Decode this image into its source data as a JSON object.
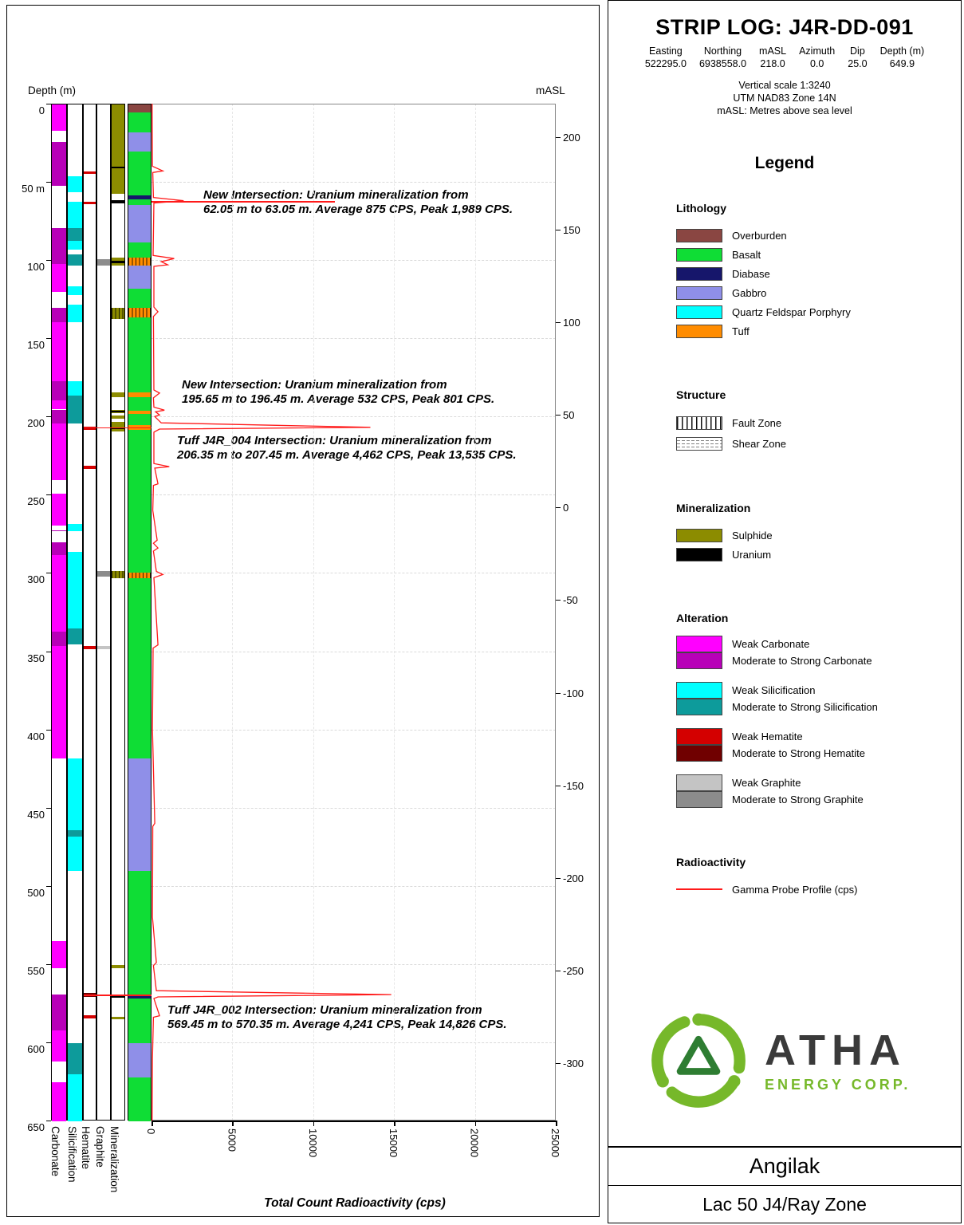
{
  "header": {
    "title": "STRIP LOG: J4R-DD-091",
    "info_labels": [
      "Easting",
      "Northing",
      "mASL",
      "Azimuth",
      "Dip",
      "Depth (m)"
    ],
    "info_values": [
      "522295.0",
      "6938558.0",
      "218.0",
      "0.0",
      "25.0",
      "649.9"
    ],
    "scale_lines": [
      "Vertical scale 1:3240",
      "UTM NAD83 Zone 14N",
      "mASL: Metres above sea level"
    ]
  },
  "left_panel": {
    "depth_label": "Depth (m)",
    "masl_label": "mASL",
    "x_title": "Total Count Radioactivity (cps)",
    "column_labels": [
      "Carbonate",
      "Silicification",
      "Hematite",
      "Graphite",
      "Mineralization"
    ]
  },
  "annotations": [
    {
      "line1": "New Intersection: Uranium mineralization from",
      "line2": "62.05 m to 63.05 m. Average 875 CPS, Peak 1,989 CPS."
    },
    {
      "line1": "New Intersection: Uranium mineralization from",
      "line2": "195.65 m to 196.45 m. Average 532 CPS, Peak 801 CPS."
    },
    {
      "line1": "Tuff J4R_004 Intersection: Uranium mineralization from",
      "line2": "206.35 m to 207.45 m. Average 4,462 CPS, Peak 13,535 CPS."
    },
    {
      "line1": "Tuff J4R_002 Intersection: Uranium mineralization from",
      "line2": "569.45 m to 570.35 m. Average 4,241 CPS, Peak 14,826 CPS."
    }
  ],
  "legend": {
    "heading": "Legend",
    "sections": [
      {
        "title": "Lithology",
        "type": "swatch",
        "items": [
          {
            "label": "Overburden",
            "color": "#8A4642"
          },
          {
            "label": "Basalt",
            "color": "#0FDD35"
          },
          {
            "label": "Diabase",
            "color": "#16166B"
          },
          {
            "label": "Gabbro",
            "color": "#8F8FE8"
          },
          {
            "label": "Quartz Feldspar Porphyry",
            "color": "#00FFFF"
          },
          {
            "label": "Tuff",
            "color": "#FF8C00"
          }
        ]
      },
      {
        "title": "Structure",
        "type": "pattern",
        "items": [
          {
            "label": "Fault Zone",
            "pattern": "fault"
          },
          {
            "label": "Shear Zone",
            "pattern": "shear"
          }
        ]
      },
      {
        "title": "Mineralization",
        "type": "swatch",
        "items": [
          {
            "label": "Sulphide",
            "color": "#8C8C00"
          },
          {
            "label": "Uranium",
            "color": "#000000"
          }
        ]
      },
      {
        "title": "Alteration",
        "type": "stacked",
        "groups": [
          [
            {
              "label": "Weak Carbonate",
              "color": "#FF00FF"
            },
            {
              "label": "Moderate to Strong Carbonate",
              "color": "#B800B8"
            }
          ],
          [
            {
              "label": "Weak Silicification",
              "color": "#00FFFF"
            },
            {
              "label": "Moderate to Strong Silicification",
              "color": "#0D9B9B"
            }
          ],
          [
            {
              "label": "Weak Hematite",
              "color": "#D40000"
            },
            {
              "label": "Moderate to Strong Hematite",
              "color": "#700000"
            }
          ],
          [
            {
              "label": "Weak Graphite",
              "color": "#C4C4C4"
            },
            {
              "label": "Moderate to Strong Graphite",
              "color": "#8C8C8C"
            }
          ]
        ]
      },
      {
        "title": "Radioactivity",
        "type": "line",
        "items": [
          {
            "label": "Gamma Probe Profile (cps)",
            "color": "#FF1A1A"
          }
        ]
      }
    ]
  },
  "logo": {
    "name": "ATHA",
    "sub": "ENERGY CORP."
  },
  "footer": {
    "project": "Angilak",
    "zone": "Lac 50 J4/Ray Zone"
  },
  "chart_data": {
    "type": "strip-log",
    "depth_axis": {
      "label": "Depth (m)",
      "min": 0,
      "max": 650,
      "ticks": [
        0,
        50,
        100,
        150,
        200,
        250,
        300,
        350,
        400,
        450,
        500,
        550,
        600,
        650
      ],
      "tick_labels": [
        "0",
        "50 m",
        "100",
        "150",
        "200",
        "250",
        "300",
        "350",
        "400",
        "450",
        "500",
        "550",
        "600",
        "650"
      ]
    },
    "masl_axis": {
      "label": "mASL",
      "surface_masl": 218.0,
      "depth_per_masl": 1.184,
      "ticks": [
        200,
        150,
        100,
        50,
        0,
        -50,
        -100,
        -150,
        -200,
        -250,
        -300
      ]
    },
    "gamma_axis": {
      "label": "Total Count Radioactivity (cps)",
      "min": 0,
      "max": 25000,
      "ticks": [
        0,
        5000,
        10000,
        15000,
        20000,
        25000
      ]
    },
    "colors": {
      "overburden": "#8A4642",
      "basalt": "#0FDD35",
      "diabase": "#16166B",
      "gabbro": "#8F8FE8",
      "qfp": "#00FFFF",
      "tuff": "#FF8C00",
      "sulphide": "#8C8C00",
      "uranium": "#000000",
      "carbonate_weak": "#FF00FF",
      "carbonate_strong": "#B800B8",
      "silicification_weak": "#00FFFF",
      "silicification_strong": "#0D9B9B",
      "hematite_weak": "#D40000",
      "hematite_strong": "#700000",
      "graphite_weak": "#C4C4C4",
      "graphite_strong": "#8C8C8C",
      "gamma": "#FF1A1A"
    },
    "columns": {
      "carbonate": [
        {
          "from": 0,
          "to": 17,
          "k": "w"
        },
        {
          "from": 24,
          "to": 52,
          "k": "s"
        },
        {
          "from": 79,
          "to": 102,
          "k": "s"
        },
        {
          "from": 102,
          "to": 120,
          "k": "w"
        },
        {
          "from": 130,
          "to": 139,
          "k": "s"
        },
        {
          "from": 139,
          "to": 177,
          "k": "w"
        },
        {
          "from": 177,
          "to": 189,
          "k": "s"
        },
        {
          "from": 189,
          "to": 195,
          "k": "w"
        },
        {
          "from": 195,
          "to": 204,
          "k": "s"
        },
        {
          "from": 204,
          "to": 240,
          "k": "w"
        },
        {
          "from": 249,
          "to": 269,
          "k": "w"
        },
        {
          "from": 272,
          "to": 273,
          "k": "s"
        },
        {
          "from": 280,
          "to": 288,
          "k": "s"
        },
        {
          "from": 288,
          "to": 337,
          "k": "w"
        },
        {
          "from": 337,
          "to": 346,
          "k": "s"
        },
        {
          "from": 346,
          "to": 418,
          "k": "w"
        },
        {
          "from": 535,
          "to": 552,
          "k": "w"
        },
        {
          "from": 569,
          "to": 592,
          "k": "s"
        },
        {
          "from": 592,
          "to": 612,
          "k": "w"
        },
        {
          "from": 625,
          "to": 650,
          "k": "w"
        }
      ],
      "silicification": [
        {
          "from": 46,
          "to": 56,
          "k": "w"
        },
        {
          "from": 62,
          "to": 79,
          "k": "w"
        },
        {
          "from": 79,
          "to": 87,
          "k": "s"
        },
        {
          "from": 87,
          "to": 93,
          "k": "w"
        },
        {
          "from": 96,
          "to": 103,
          "k": "s"
        },
        {
          "from": 116,
          "to": 122,
          "k": "w"
        },
        {
          "from": 128,
          "to": 139,
          "k": "w"
        },
        {
          "from": 177,
          "to": 186,
          "k": "w"
        },
        {
          "from": 186,
          "to": 204,
          "k": "s"
        },
        {
          "from": 268,
          "to": 273,
          "k": "w"
        },
        {
          "from": 286,
          "to": 335,
          "k": "w"
        },
        {
          "from": 335,
          "to": 345,
          "k": "s"
        },
        {
          "from": 418,
          "to": 464,
          "k": "w"
        },
        {
          "from": 464,
          "to": 468,
          "k": "s"
        },
        {
          "from": 468,
          "to": 490,
          "k": "w"
        },
        {
          "from": 600,
          "to": 620,
          "k": "s"
        },
        {
          "from": 620,
          "to": 650,
          "k": "w"
        }
      ],
      "hematite": [
        {
          "from": 43,
          "to": 44.5,
          "k": "w"
        },
        {
          "from": 62,
          "to": 63.5,
          "k": "w"
        },
        {
          "from": 206,
          "to": 208,
          "k": "w"
        },
        {
          "from": 231,
          "to": 233,
          "k": "w"
        },
        {
          "from": 346,
          "to": 348,
          "k": "w"
        },
        {
          "from": 568,
          "to": 570.5,
          "k": "s"
        },
        {
          "from": 582,
          "to": 584,
          "k": "w"
        }
      ],
      "graphite": [
        {
          "from": 99,
          "to": 103,
          "k": "s"
        },
        {
          "from": 298,
          "to": 302,
          "k": "s"
        },
        {
          "from": 346,
          "to": 348,
          "k": "w"
        }
      ],
      "mineralization": [
        {
          "from": 0,
          "to": 57,
          "k": "sul"
        },
        {
          "from": 40,
          "to": 41,
          "k": "u"
        },
        {
          "from": 61,
          "to": 63,
          "k": "u"
        },
        {
          "from": 98,
          "to": 103,
          "k": "sul"
        },
        {
          "from": 100,
          "to": 101.5,
          "k": "u"
        },
        {
          "from": 130,
          "to": 137,
          "k": "sul",
          "hatch": true
        },
        {
          "from": 184,
          "to": 187,
          "k": "sul"
        },
        {
          "from": 195,
          "to": 197.5,
          "k": "sul"
        },
        {
          "from": 196,
          "to": 196.8,
          "k": "u"
        },
        {
          "from": 199,
          "to": 201,
          "k": "sul"
        },
        {
          "from": 203,
          "to": 209,
          "k": "sul"
        },
        {
          "from": 206.3,
          "to": 207.5,
          "k": "u"
        },
        {
          "from": 298,
          "to": 303,
          "k": "sul",
          "hatch": true
        },
        {
          "from": 550,
          "to": 552,
          "k": "sul"
        },
        {
          "from": 569,
          "to": 571,
          "k": "u"
        },
        {
          "from": 583,
          "to": 584.5,
          "k": "sul"
        }
      ],
      "lithology": [
        {
          "from": 0,
          "to": 5,
          "k": "overburden"
        },
        {
          "from": 5,
          "to": 18,
          "k": "basalt"
        },
        {
          "from": 18,
          "to": 30,
          "k": "gabbro"
        },
        {
          "from": 30,
          "to": 58,
          "k": "basalt"
        },
        {
          "from": 58,
          "to": 60.5,
          "k": "diabase"
        },
        {
          "from": 60.5,
          "to": 64,
          "k": "basalt"
        },
        {
          "from": 64,
          "to": 88,
          "k": "gabbro"
        },
        {
          "from": 88,
          "to": 98,
          "k": "basalt"
        },
        {
          "from": 98,
          "to": 103,
          "k": "tuff",
          "hatch": true
        },
        {
          "from": 103,
          "to": 118,
          "k": "gabbro"
        },
        {
          "from": 118,
          "to": 130,
          "k": "basalt"
        },
        {
          "from": 130,
          "to": 136,
          "k": "tuff",
          "hatch": true
        },
        {
          "from": 136,
          "to": 184,
          "k": "basalt"
        },
        {
          "from": 184,
          "to": 187,
          "k": "tuff"
        },
        {
          "from": 187,
          "to": 196,
          "k": "basalt"
        },
        {
          "from": 196,
          "to": 198,
          "k": "tuff"
        },
        {
          "from": 198,
          "to": 205,
          "k": "basalt"
        },
        {
          "from": 205,
          "to": 208,
          "k": "tuff"
        },
        {
          "from": 208,
          "to": 299,
          "k": "basalt"
        },
        {
          "from": 299,
          "to": 303,
          "k": "tuff",
          "hatch": true
        },
        {
          "from": 303,
          "to": 418,
          "k": "basalt"
        },
        {
          "from": 418,
          "to": 490,
          "k": "gabbro"
        },
        {
          "from": 490,
          "to": 570,
          "k": "basalt"
        },
        {
          "from": 570,
          "to": 571.5,
          "k": "diabase"
        },
        {
          "from": 571.5,
          "to": 600,
          "k": "basalt"
        },
        {
          "from": 600,
          "to": 622,
          "k": "gabbro"
        },
        {
          "from": 622,
          "to": 650,
          "k": "basalt"
        }
      ]
    },
    "gamma_profile": [
      [
        0,
        40
      ],
      [
        40,
        60
      ],
      [
        43,
        700
      ],
      [
        44,
        80
      ],
      [
        60,
        120
      ],
      [
        62,
        1989
      ],
      [
        63.5,
        150
      ],
      [
        97,
        100
      ],
      [
        99,
        1400
      ],
      [
        101,
        600
      ],
      [
        103,
        1000
      ],
      [
        104,
        150
      ],
      [
        130,
        150
      ],
      [
        133,
        400
      ],
      [
        136,
        120
      ],
      [
        183,
        150
      ],
      [
        185,
        500
      ],
      [
        188,
        120
      ],
      [
        194,
        150
      ],
      [
        195.9,
        801
      ],
      [
        197,
        250
      ],
      [
        199,
        500
      ],
      [
        200,
        200
      ],
      [
        202,
        400
      ],
      [
        204,
        600
      ],
      [
        206.9,
        13535
      ],
      [
        208,
        500
      ],
      [
        210,
        150
      ],
      [
        230,
        150
      ],
      [
        232,
        1100
      ],
      [
        233,
        200
      ],
      [
        243,
        400
      ],
      [
        244,
        120
      ],
      [
        260,
        80
      ],
      [
        279,
        350
      ],
      [
        281,
        120
      ],
      [
        284,
        400
      ],
      [
        286,
        120
      ],
      [
        299,
        300
      ],
      [
        301,
        700
      ],
      [
        303,
        150
      ],
      [
        346,
        400
      ],
      [
        348,
        100
      ],
      [
        400,
        60
      ],
      [
        460,
        200
      ],
      [
        462,
        80
      ],
      [
        520,
        60
      ],
      [
        549,
        300
      ],
      [
        551,
        120
      ],
      [
        567,
        300
      ],
      [
        569.5,
        14826
      ],
      [
        571,
        400
      ],
      [
        572,
        150
      ],
      [
        583,
        500
      ],
      [
        584,
        120
      ],
      [
        610,
        60
      ],
      [
        650,
        40
      ]
    ],
    "intersections": [
      {
        "name": "New Intersection",
        "from_m": 62.05,
        "to_m": 63.05,
        "avg_cps": 875,
        "peak_cps": 1989
      },
      {
        "name": "New Intersection",
        "from_m": 195.65,
        "to_m": 196.45,
        "avg_cps": 532,
        "peak_cps": 801
      },
      {
        "name": "Tuff J4R_004 Intersection",
        "from_m": 206.35,
        "to_m": 207.45,
        "avg_cps": 4462,
        "peak_cps": 13535
      },
      {
        "name": "Tuff J4R_002 Intersection",
        "from_m": 569.45,
        "to_m": 570.35,
        "avg_cps": 4241,
        "peak_cps": 14826
      }
    ]
  }
}
